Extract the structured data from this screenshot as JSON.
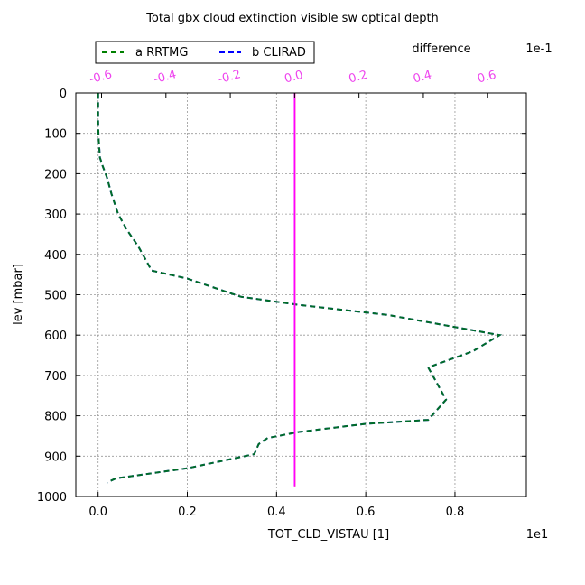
{
  "chart_data": {
    "type": "line",
    "title": "Total gbx cloud extinction visible sw optical depth",
    "xlabel": "TOT_CLD_VISTAU [1]",
    "ylabel": "lev [mbar]",
    "x_scale_label": "1e1",
    "top_axis_label": "difference",
    "top_scale_label": "1e-1",
    "xlim": [
      -0.05,
      0.96
    ],
    "ylim": [
      1000,
      0
    ],
    "top_xlim": [
      -0.68,
      0.72
    ],
    "xticks": [
      0.0,
      0.2,
      0.4,
      0.6,
      0.8
    ],
    "xtick_labels": [
      "0.0",
      "0.2",
      "0.4",
      "0.6",
      "0.8"
    ],
    "yticks": [
      0,
      100,
      200,
      300,
      400,
      500,
      600,
      700,
      800,
      900,
      1000
    ],
    "ytick_labels": [
      "0",
      "100",
      "200",
      "300",
      "400",
      "500",
      "600",
      "700",
      "800",
      "900",
      "1000"
    ],
    "top_xticks": [
      -0.6,
      -0.4,
      -0.2,
      0.0,
      0.2,
      0.4,
      0.6
    ],
    "top_xtick_labels": [
      "-0.6",
      "-0.4",
      "-0.2",
      "0.0",
      "0.2",
      "0.4",
      "0.6"
    ],
    "grid": true,
    "legend_position": "top-left",
    "colors": {
      "rrtmg": "#008000",
      "clirad": "#0000ff",
      "difference": "#ff00ff",
      "top_ticks": "#ee44ee"
    },
    "series": [
      {
        "name": "a RRTMG",
        "style": "dashed",
        "color": "#008000",
        "x": [
          0.0,
          0.0,
          0.0,
          0.0,
          0.001,
          0.004,
          0.01,
          0.02,
          0.03,
          0.045,
          0.065,
          0.09,
          0.12,
          0.2,
          0.32,
          0.45,
          0.65,
          0.9,
          0.84,
          0.74,
          0.78,
          0.74,
          0.6,
          0.45,
          0.38,
          0.36,
          0.35,
          0.2,
          0.04,
          0.02
        ],
        "y": [
          1,
          12,
          35,
          70,
          110,
          160,
          180,
          210,
          250,
          300,
          340,
          380,
          440,
          460,
          505,
          525,
          550,
          600,
          640,
          680,
          760,
          810,
          820,
          840,
          855,
          870,
          895,
          930,
          955,
          965
        ]
      },
      {
        "name": "b CLIRAD",
        "style": "dashed",
        "color": "#0000ff",
        "x": [
          0.0,
          0.0,
          0.0,
          0.0,
          0.001,
          0.004,
          0.01,
          0.02,
          0.03,
          0.045,
          0.065,
          0.09,
          0.12,
          0.2,
          0.32,
          0.45,
          0.65,
          0.9,
          0.84,
          0.74,
          0.78,
          0.74,
          0.6,
          0.45,
          0.38,
          0.36,
          0.35,
          0.2,
          0.04,
          0.02
        ],
        "y": [
          1,
          12,
          35,
          70,
          110,
          160,
          180,
          210,
          250,
          300,
          340,
          380,
          440,
          460,
          505,
          525,
          550,
          600,
          640,
          680,
          760,
          810,
          820,
          840,
          855,
          870,
          895,
          930,
          955,
          965
        ]
      },
      {
        "name": "difference",
        "style": "solid",
        "color": "#ff00ff",
        "axis": "top",
        "x": [
          0.0,
          0.0
        ],
        "y": [
          1,
          975
        ]
      }
    ]
  }
}
